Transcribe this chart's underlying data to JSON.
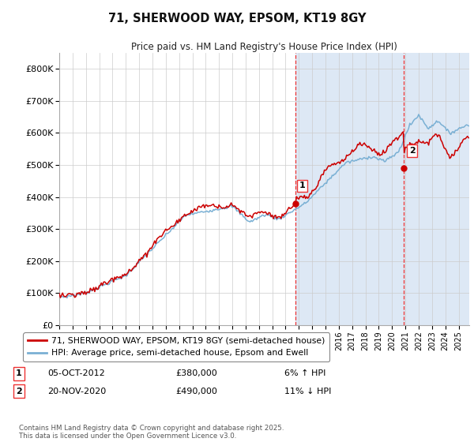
{
  "title": "71, SHERWOOD WAY, EPSOM, KT19 8GY",
  "subtitle": "Price paid vs. HM Land Registry's House Price Index (HPI)",
  "ylabel_ticks": [
    "£0",
    "£100K",
    "£200K",
    "£300K",
    "£400K",
    "£500K",
    "£600K",
    "£700K",
    "£800K"
  ],
  "ytick_values": [
    0,
    100000,
    200000,
    300000,
    400000,
    500000,
    600000,
    700000,
    800000
  ],
  "ylim": [
    0,
    850000
  ],
  "xlim_start": 1995.0,
  "xlim_end": 2025.8,
  "sale1_x": 2012.76,
  "sale1_y": 380000,
  "sale1_label": "1",
  "sale2_x": 2020.9,
  "sale2_y": 490000,
  "sale2_label": "2",
  "legend_line1": "71, SHERWOOD WAY, EPSOM, KT19 8GY (semi-detached house)",
  "legend_line2": "HPI: Average price, semi-detached house, Epsom and Ewell",
  "footer": "Contains HM Land Registry data © Crown copyright and database right 2025.\nThis data is licensed under the Open Government Licence v3.0.",
  "line_color_red": "#cc0000",
  "line_color_blue": "#7ab0d4",
  "shade_color": "#dde8f5",
  "vline_color": "#ee3333",
  "grid_color": "#cccccc",
  "background_color": "#ffffff"
}
